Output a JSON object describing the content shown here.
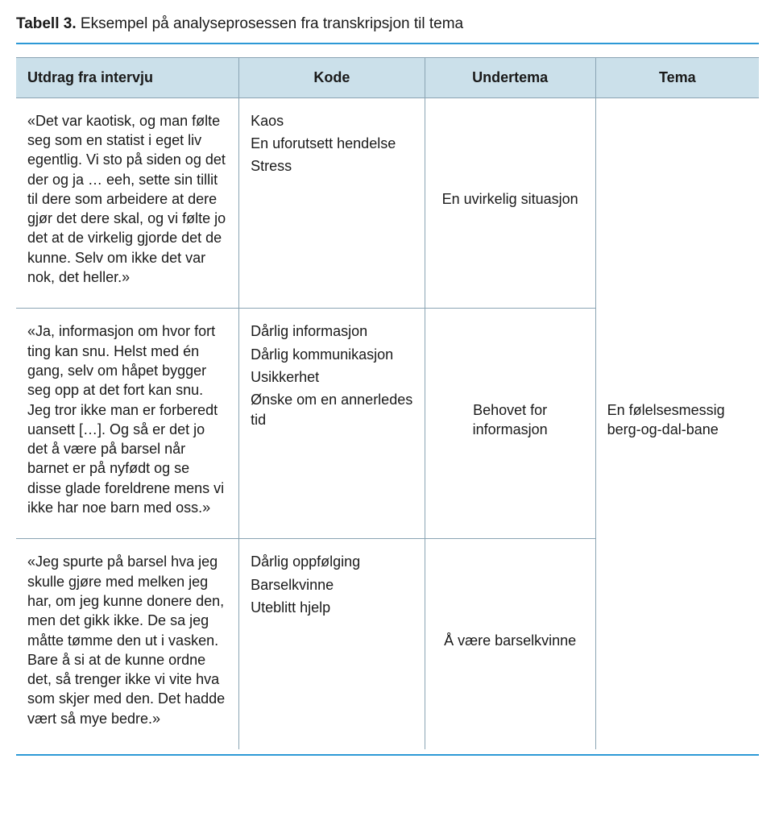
{
  "caption": {
    "label": "Tabell 3.",
    "text": "Eksempel på analyseprosessen fra transkripsjon til tema"
  },
  "colors": {
    "accent_rule": "#2d99d6",
    "header_bg": "#cbe0ea",
    "grid": "#8aa4b3",
    "text": "#1a1a1a",
    "background": "#ffffff"
  },
  "table": {
    "type": "table",
    "columns": [
      {
        "key": "excerpt",
        "label": "Utdrag fra intervju",
        "align": "left",
        "width_pct": 30
      },
      {
        "key": "code",
        "label": "Kode",
        "align": "center",
        "width_pct": 25
      },
      {
        "key": "sub",
        "label": "Undertema",
        "align": "center",
        "width_pct": 23
      },
      {
        "key": "theme",
        "label": "Tema",
        "align": "center",
        "width_pct": 22
      }
    ],
    "header_fontsize": 18,
    "body_fontsize": 18,
    "theme_rowspan": 3,
    "theme_text": "En følelsesmessig berg-og-dal-bane",
    "rows": [
      {
        "excerpt": "«Det var kaotisk, og man følte seg som en statist i eget liv egentlig. Vi sto på siden og det der og ja … eeh, sette sin tillit til dere som arbeidere at dere gjør det dere skal, og vi følte jo det at de virkelig gjorde det de kunne. Selv om ikke det var nok, det heller.»",
        "codes": [
          "Kaos",
          "En uforutsett hendelse",
          "Stress"
        ],
        "subtheme": "En uvirkelig situasjon"
      },
      {
        "excerpt": "«Ja, informasjon om hvor fort ting kan snu. Helst med én gang, selv om håpet bygger seg opp at det fort kan snu. Jeg tror ikke man er forberedt uansett […]. Og så er det jo det å være på barsel når barnet er på nyfødt og se disse glade foreldrene mens vi ikke har noe barn med oss.»",
        "codes": [
          "Dårlig informasjon",
          "Dårlig kommunikasjon",
          "Usikkerhet",
          "Ønske om en annerledes tid"
        ],
        "subtheme": "Behovet for informasjon"
      },
      {
        "excerpt": "«Jeg spurte på barsel hva jeg skulle gjøre med melken jeg har, om jeg kunne donere den, men det gikk ikke. De sa jeg måtte tømme den ut i vasken. Bare å si at de kunne ordne det, så trenger ikke vi vite hva som skjer med den. Det hadde vært så mye bedre.»",
        "codes": [
          "Dårlig oppfølging",
          "Barselkvinne",
          "Uteblitt hjelp"
        ],
        "subtheme": "Å være barselkvinne"
      }
    ]
  }
}
